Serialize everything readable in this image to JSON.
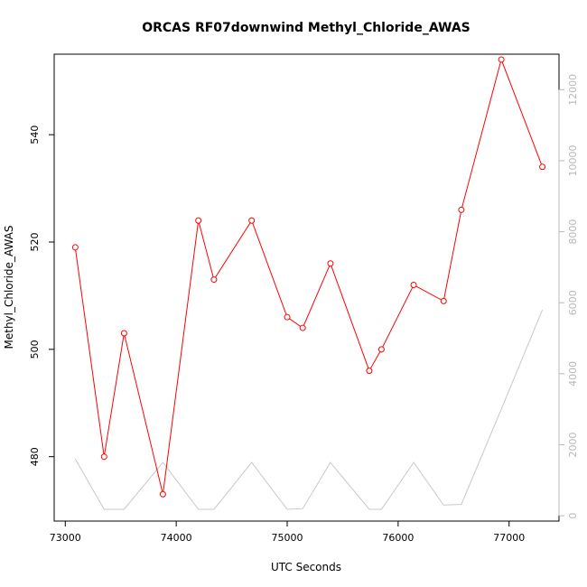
{
  "chart_data": {
    "type": "line",
    "title": "ORCAS RF07downwind Methyl_Chloride_AWAS",
    "xlabel": "UTC Seconds",
    "ylabel": "Methyl_Chloride_AWAS",
    "xlim": [
      72900,
      77450
    ],
    "ylim": [
      468,
      555
    ],
    "y2lim": [
      -150,
      13000
    ],
    "x_ticks": [
      73000,
      74000,
      75000,
      76000,
      77000
    ],
    "y_ticks": [
      480,
      500,
      520,
      540
    ],
    "y2_ticks": [
      0,
      2000,
      4000,
      6000,
      8000,
      10000,
      12000
    ],
    "grid": false,
    "series": [
      {
        "axis": "left",
        "color": "#ff0000",
        "marker": "open-circle",
        "x": [
          73090,
          73350,
          73530,
          73880,
          74200,
          74340,
          74680,
          75000,
          75140,
          75390,
          75740,
          75850,
          76140,
          76410,
          76570,
          76930,
          77300
        ],
        "values": [
          519,
          480,
          503,
          473,
          524,
          513,
          524,
          506,
          504,
          516,
          496,
          500,
          512,
          509,
          526,
          554,
          534
        ]
      },
      {
        "axis": "right",
        "color": "#c8c8c8",
        "x": [
          73090,
          73350,
          73530,
          73880,
          74200,
          74340,
          74680,
          75000,
          75140,
          75390,
          75740,
          75850,
          76140,
          76410,
          76570,
          76930,
          77300
        ],
        "values": [
          1600,
          180,
          180,
          1500,
          180,
          180,
          1500,
          180,
          200,
          1500,
          180,
          180,
          1500,
          300,
          320,
          3000,
          5800
        ]
      }
    ]
  }
}
